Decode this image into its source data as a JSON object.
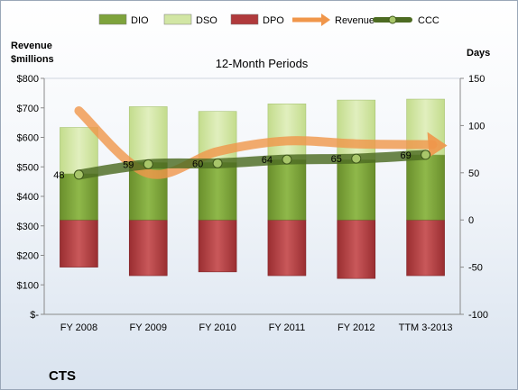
{
  "chart_data": {
    "type": "bar",
    "title": "12-Month Periods",
    "company": "CTS",
    "left_axis_label": "Revenue\n$millions",
    "right_axis_label": "Days",
    "categories": [
      "FY 2008",
      "FY 2009",
      "FY 2010",
      "FY 2011",
      "FY 2012",
      "TTM 3-2013"
    ],
    "left_axis": {
      "min": 0,
      "max": 800,
      "step": 100,
      "ticks": [
        "$-",
        "$100",
        "$200",
        "$300",
        "$400",
        "$500",
        "$600",
        "$700",
        "$800"
      ]
    },
    "right_axis": {
      "min": -100,
      "max": 150,
      "step": 50,
      "ticks": [
        "-100",
        "-50",
        "0",
        "50",
        "100",
        "150"
      ]
    },
    "legend": [
      {
        "name": "DIO",
        "type": "bar",
        "color": "#7ea33c"
      },
      {
        "name": "DSO",
        "type": "bar",
        "color": "#d2e6a4"
      },
      {
        "name": "DPO",
        "type": "bar",
        "color": "#b03a3c"
      },
      {
        "name": "Revenue",
        "type": "arrow",
        "color": "#f0964a"
      },
      {
        "name": "CCC",
        "type": "line",
        "color": "#4d6b22"
      }
    ],
    "legend_position": "top",
    "series": [
      {
        "name": "DIO",
        "axis": "right",
        "values": [
          49,
          61,
          61,
          64,
          64,
          69
        ]
      },
      {
        "name": "DSO",
        "axis": "right",
        "values": [
          49,
          59,
          54,
          59,
          63,
          59
        ]
      },
      {
        "name": "DPO",
        "axis": "right",
        "values": [
          -50,
          -59,
          -55,
          -59,
          -62,
          -59
        ]
      },
      {
        "name": "Revenue",
        "axis": "left",
        "values": [
          690,
          478,
          552,
          588,
          578,
          566
        ]
      },
      {
        "name": "CCC",
        "axis": "right",
        "values": [
          48,
          59,
          60,
          64,
          65,
          69
        ],
        "labels": [
          "48",
          "59",
          "60",
          "64",
          "65",
          "69"
        ]
      }
    ]
  }
}
